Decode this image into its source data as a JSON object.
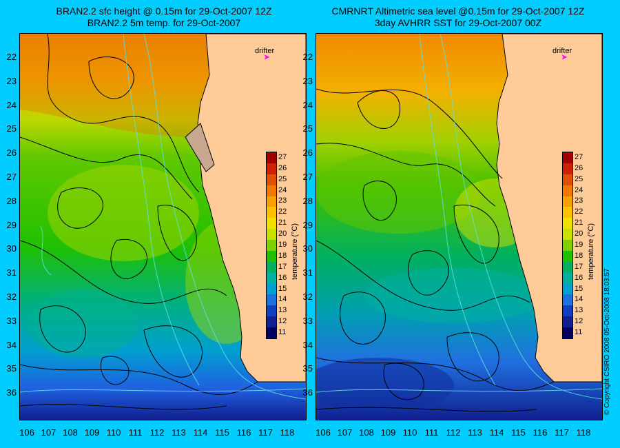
{
  "panels": [
    {
      "title_line1": "BRAN2.2 sfc height @ 0.15m for 29-Oct-2007 12Z",
      "title_line2": "BRAN2.2 5m temp. for 29-Oct-2007",
      "drifter_label": "drifter"
    },
    {
      "title_line1": "CMRNRT Altimetric sea level  @0.15m  for 29-Oct-2007 12Z",
      "title_line2": "3day AVHRR SST for 29-Oct-2007 00Z",
      "drifter_label": "drifter"
    }
  ],
  "axes": {
    "lat_labels": [
      "22",
      "23",
      "24",
      "25",
      "26",
      "27",
      "28",
      "29",
      "30",
      "31",
      "32",
      "33",
      "34",
      "35",
      "36"
    ],
    "lon_labels": [
      "106",
      "107",
      "108",
      "109",
      "110",
      "111",
      "112",
      "113",
      "114",
      "115",
      "116",
      "117",
      "118"
    ]
  },
  "colorbar": {
    "title": "temperature (°C)",
    "ticks": [
      "27",
      "26",
      "25",
      "24",
      "23",
      "22",
      "21",
      "20",
      "19",
      "18",
      "17",
      "16",
      "15",
      "14",
      "13",
      "12",
      "11"
    ],
    "colors": [
      "#a00000",
      "#d02000",
      "#e05000",
      "#f07a00",
      "#f8a000",
      "#ffc000",
      "#f0e000",
      "#c8e000",
      "#80d000",
      "#20c000",
      "#00b060",
      "#00b0a0",
      "#00a0d0",
      "#2070e0",
      "#1040c0",
      "#102090",
      "#000060"
    ]
  },
  "copyright": "© Copyright CSIRO 2008    05-Oct-2008 18:03:57",
  "colors": {
    "background": "#00ccff",
    "land": "#ffcc99",
    "drifter": "#ff00ff"
  }
}
